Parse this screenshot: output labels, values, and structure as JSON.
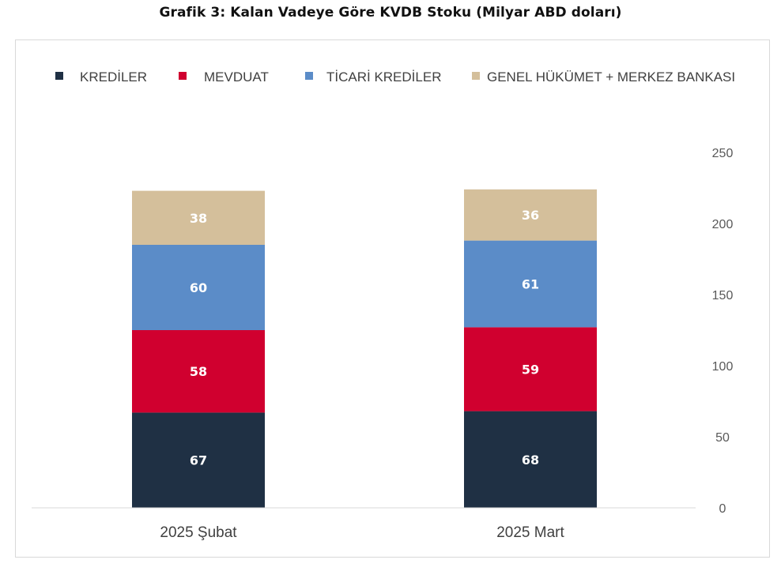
{
  "chart_data": {
    "type": "bar",
    "stacked": true,
    "title": "Grafik 3: Kalan Vadeye Göre KVDB Stoku (Milyar ABD doları)",
    "categories": [
      "2025 Şubat",
      "2025 Mart"
    ],
    "series": [
      {
        "name": "KREDİLER",
        "color": "#1f3044",
        "values": [
          67,
          68
        ]
      },
      {
        "name": "MEVDUAT",
        "color": "#d0002f",
        "values": [
          58,
          59
        ]
      },
      {
        "name": "TİCARİ KREDİLER",
        "color": "#5b8cc8",
        "values": [
          60,
          61
        ]
      },
      {
        "name": "GENEL HÜKÜMET + MERKEZ BANKASI",
        "color": "#d4bf9b",
        "values": [
          38,
          36
        ]
      }
    ],
    "ylim": [
      0,
      250
    ],
    "yticks": [
      0,
      50,
      100,
      150,
      200,
      250
    ],
    "y_axis_position": "right",
    "legend_position": "top",
    "grid": false,
    "data_labels": true
  }
}
